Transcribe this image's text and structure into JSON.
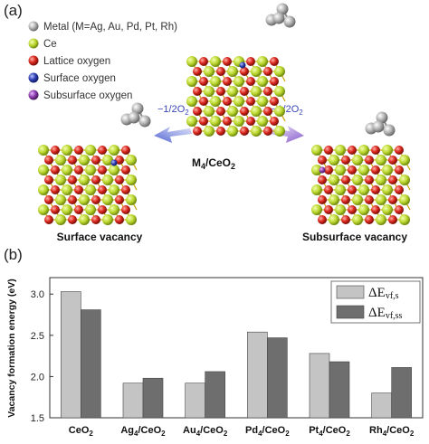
{
  "panel_a": {
    "label": "(a)",
    "legend": [
      {
        "text": "Metal (M=Ag, Au, Pd, Pt, Rh)",
        "color": "#b0b0b0",
        "icon": "metal-atom-icon"
      },
      {
        "text": "Ce",
        "color": "#b8d42a",
        "icon": "ce-atom-icon"
      },
      {
        "text": "Lattice oxygen",
        "color": "#d8261c",
        "icon": "lattice-oxygen-icon"
      },
      {
        "text": "Surface oxygen",
        "color": "#2f3fb5",
        "icon": "surface-oxygen-icon"
      },
      {
        "text": "Subsurface oxygen",
        "color": "#8e3fb0",
        "icon": "subsurface-oxygen-icon"
      }
    ],
    "center_caption": "M",
    "center_caption_sub1": "4",
    "center_caption_mid": "/CeO",
    "center_caption_sub2": "2",
    "left_arrow_label": "−1/2O",
    "left_arrow_sub": "2",
    "right_arrow_label": "−1/2O",
    "right_arrow_sub": "2",
    "left_caption": "Surface vacancy",
    "right_caption": "Subsurface vacancy"
  },
  "panel_b": {
    "label": "(b)",
    "legend_series": [
      {
        "symbol": "ΔE",
        "sub": "vf,s"
      },
      {
        "symbol": "ΔE",
        "sub": "vf,ss"
      }
    ]
  },
  "chart_data": {
    "type": "bar",
    "ylabel": "Vacancy formation energy (eV)",
    "ylim": [
      1.5,
      3.2
    ],
    "yticks": [
      "1.5",
      "2.0",
      "2.5",
      "3.0"
    ],
    "categories": [
      {
        "main": "CeO",
        "sub1": "",
        "mid": "",
        "sub2": "2"
      },
      {
        "main": "Ag",
        "sub1": "4",
        "mid": "/CeO",
        "sub2": "2"
      },
      {
        "main": "Au",
        "sub1": "4",
        "mid": "/CeO",
        "sub2": "2"
      },
      {
        "main": "Pd",
        "sub1": "4",
        "mid": "/CeO",
        "sub2": "2"
      },
      {
        "main": "Pt",
        "sub1": "4",
        "mid": "/CeO",
        "sub2": "2"
      },
      {
        "main": "Rh",
        "sub1": "4",
        "mid": "/CeO",
        "sub2": "2"
      }
    ],
    "series": [
      {
        "name": "ΔEvf,s",
        "color": "#c4c4c4",
        "values": [
          3.03,
          1.92,
          1.92,
          2.54,
          2.28,
          1.8
        ]
      },
      {
        "name": "ΔEvf,ss",
        "color": "#6e6e6e",
        "values": [
          2.81,
          1.98,
          2.06,
          2.47,
          2.18,
          2.11
        ]
      }
    ],
    "legend_position": "top-right",
    "grid": false
  }
}
